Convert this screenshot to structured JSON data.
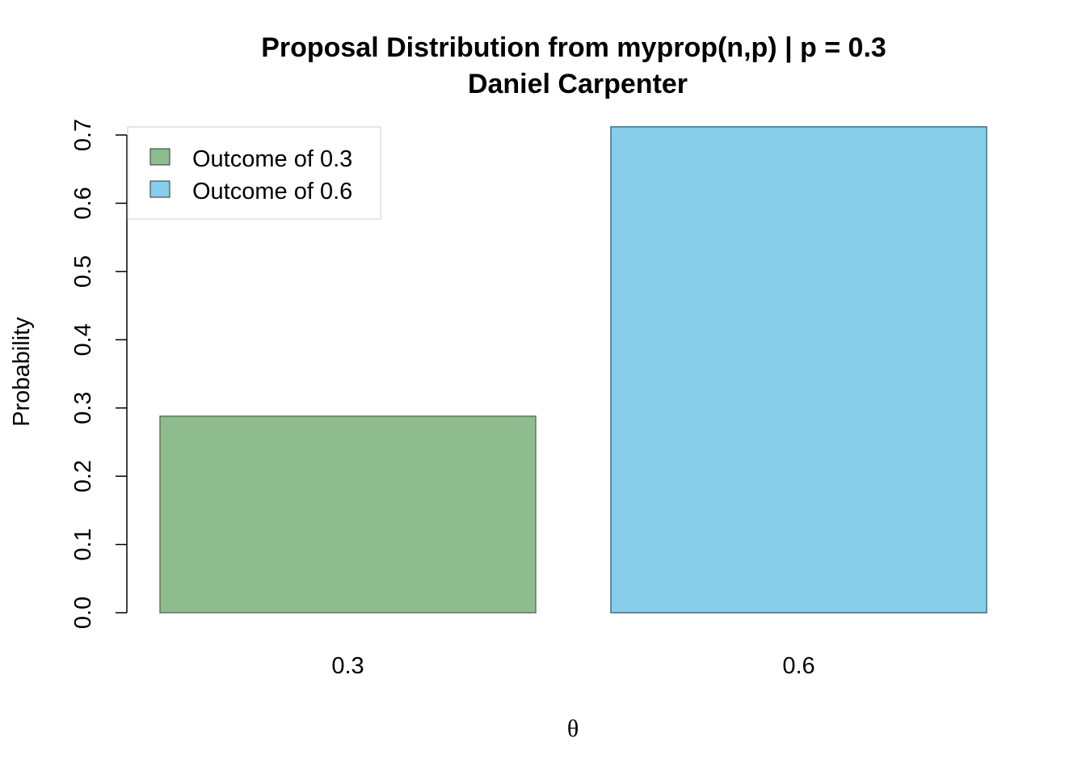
{
  "chart_data": {
    "type": "bar",
    "title": "Proposal Distribution from myprop(n,p) | p = 0.3",
    "subtitle": "Daniel Carpenter",
    "xlabel": "θ",
    "ylabel": "Probability",
    "categories": [
      "0.3",
      "0.6"
    ],
    "values": [
      0.288,
      0.712
    ],
    "colors": [
      "#8fbc8f",
      "#87ceeb"
    ],
    "border_colors": [
      "#5a7a5a",
      "#3f6f88"
    ],
    "ylim": [
      0,
      0.7
    ],
    "yticks": [
      0.0,
      0.1,
      0.2,
      0.3,
      0.4,
      0.5,
      0.6,
      0.7
    ],
    "ytick_labels": [
      "0.0",
      "0.1",
      "0.2",
      "0.3",
      "0.4",
      "0.5",
      "0.6",
      "0.7"
    ],
    "grid": false,
    "legend": {
      "placement": "top-left",
      "entries": [
        {
          "label": "Outcome of 0.3",
          "color": "#8fbc8f"
        },
        {
          "label": "Outcome of 0.6",
          "color": "#87ceeb"
        }
      ]
    }
  }
}
